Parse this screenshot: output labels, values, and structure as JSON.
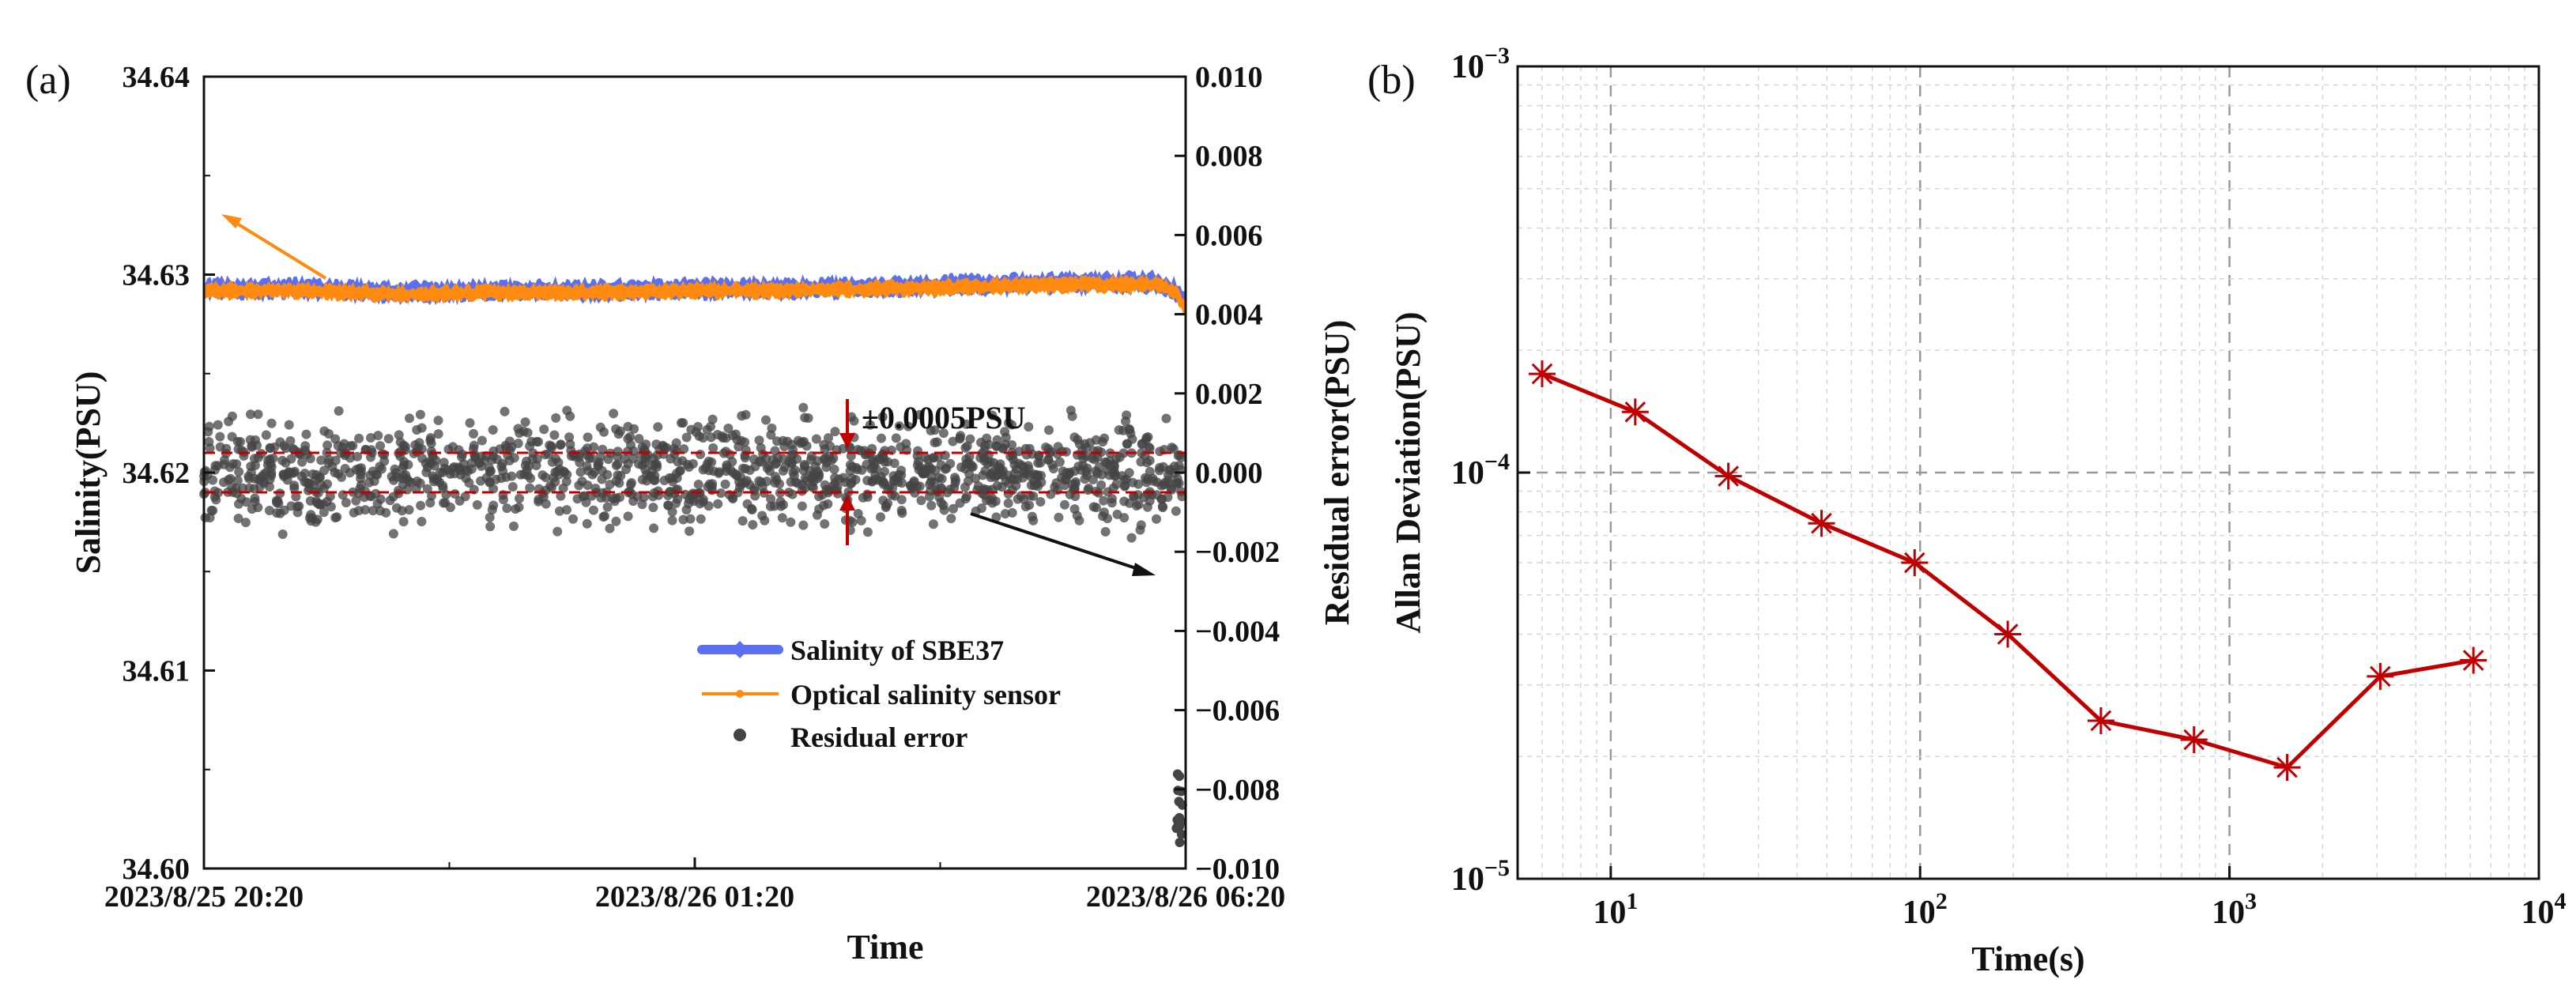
{
  "chart_data": [
    {
      "type": "line",
      "panel_label": "(a)",
      "title": "",
      "xlabel": "Time",
      "ylabel": "Salinity(PSU)",
      "y2label": "Residual error(PSU)",
      "ylim": [
        34.6,
        34.64
      ],
      "y2lim": [
        -0.01,
        0.01
      ],
      "x_tick_labels": [
        "2023/8/25 20:20",
        "2023/8/26 01:20",
        "2023/8/26 06:20"
      ],
      "y_tick_labels": [
        "34.64",
        "34.63",
        "34.62",
        "34.61",
        "34.60"
      ],
      "y_ticks": [
        34.64,
        34.63,
        34.62,
        34.61,
        34.6
      ],
      "y2_tick_labels": [
        "0.010",
        "0.008",
        "0.006",
        "0.004",
        "0.002",
        "0.000",
        "−0.002",
        "−0.004",
        "−0.006",
        "−0.008",
        "−0.010"
      ],
      "y2_ticks": [
        0.01,
        0.008,
        0.006,
        0.004,
        0.002,
        0.0,
        -0.002,
        -0.004,
        -0.006,
        -0.008,
        -0.01
      ],
      "x_hours": [
        0,
        10
      ],
      "x_tick_hours": [
        0,
        5,
        10
      ],
      "series": [
        {
          "name": "Salinity of SBE37",
          "axis": "left",
          "color": "#5b6ff0",
          "x": [
            0,
            1,
            2,
            3,
            4,
            5,
            6,
            7,
            8,
            9,
            9.7,
            9.9,
            10
          ],
          "values": [
            34.6293,
            34.6293,
            34.6291,
            34.6292,
            34.6292,
            34.6293,
            34.6293,
            34.6294,
            34.6295,
            34.6296,
            34.6296,
            34.6292,
            34.6284
          ],
          "band": 0.0008
        },
        {
          "name": "Optical salinity sensor",
          "axis": "left",
          "color": "#ff8a10",
          "x": [
            0,
            1,
            2,
            3,
            4,
            5,
            6,
            7,
            8,
            9,
            9.7,
            9.9,
            10
          ],
          "values": [
            34.6292,
            34.6292,
            34.629,
            34.6291,
            34.6291,
            34.6292,
            34.6292,
            34.6293,
            34.6294,
            34.6295,
            34.6295,
            34.6291,
            34.6282
          ],
          "band": 0.0006
        },
        {
          "name": "Residual error",
          "axis": "right",
          "color": "#444444",
          "x": [
            0,
            10
          ],
          "values": [
            0.0,
            0.0
          ],
          "spread": 0.0006
        }
      ],
      "annotations": [
        {
          "text": "±0.0005PSU",
          "band": [
            -0.0005,
            0.0005
          ],
          "color": "#c00000"
        }
      ],
      "legend_placement": "bottom-right"
    },
    {
      "type": "line",
      "panel_label": "(b)",
      "title": "",
      "xlabel": "Time(s)",
      "ylabel": "Allan Deviation(PSU)",
      "xscale": "log",
      "yscale": "log",
      "xlim": [
        5,
        10000
      ],
      "ylim": [
        1e-05,
        0.001
      ],
      "x_tick_labels": [
        {
          "base": "10",
          "exp": "1"
        },
        {
          "base": "10",
          "exp": "2"
        },
        {
          "base": "10",
          "exp": "3"
        },
        {
          "base": "10",
          "exp": "4"
        }
      ],
      "x_ticks": [
        10,
        100,
        1000,
        10000
      ],
      "y_tick_labels": [
        {
          "base": "10",
          "exp": "−3"
        },
        {
          "base": "10",
          "exp": "−4"
        },
        {
          "base": "10",
          "exp": "−5"
        }
      ],
      "y_ticks": [
        0.001,
        0.0001,
        1e-05
      ],
      "grid": true,
      "series": [
        {
          "name": "Allan Deviation",
          "color": "#c00000",
          "x": [
            6,
            12,
            24,
            48,
            96,
            192,
            384,
            768,
            1536,
            3072,
            6144
          ],
          "values": [
            0.000175,
            0.000141,
            9.8e-05,
            7.5e-05,
            6e-05,
            4e-05,
            2.45e-05,
            2.2e-05,
            1.88e-05,
            3.15e-05,
            3.45e-05
          ]
        }
      ]
    }
  ]
}
